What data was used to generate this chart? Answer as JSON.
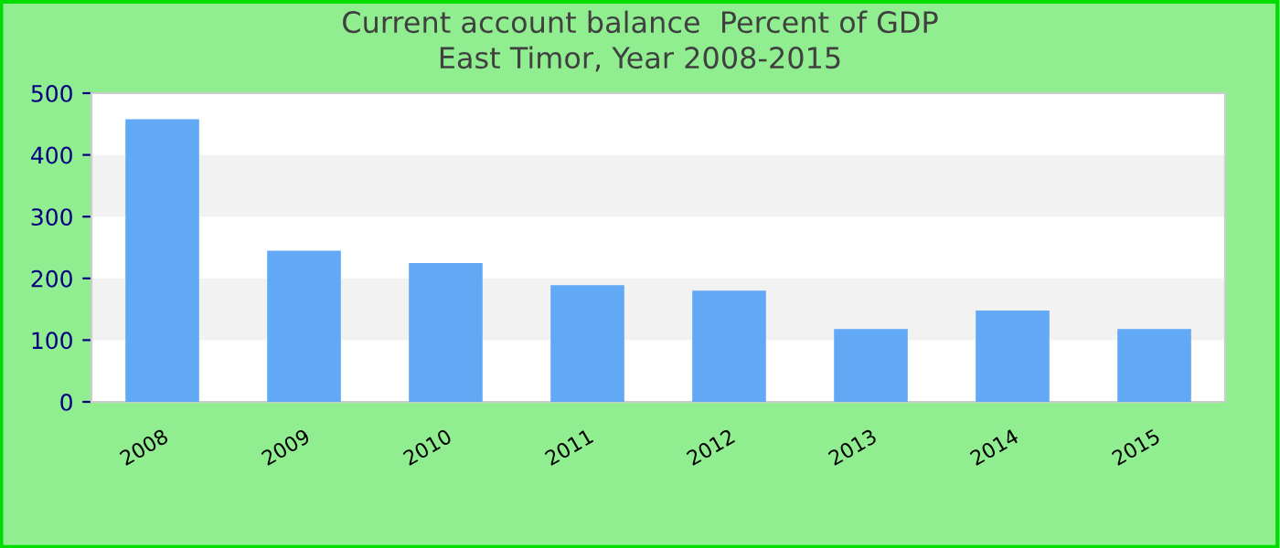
{
  "chart_data": {
    "type": "bar",
    "title": "Current account balance  Percent of GDP",
    "subtitle": "East Timor, Year 2008-2015",
    "categories": [
      "2008",
      "2009",
      "2010",
      "2011",
      "2012",
      "2013",
      "2014",
      "2015"
    ],
    "values": [
      458,
      245,
      225,
      189,
      180,
      118,
      148,
      118
    ],
    "color": "#61a8f5",
    "ylim": [
      0,
      500
    ],
    "yticks": [
      0,
      100,
      200,
      300,
      400,
      500
    ],
    "grid": false,
    "legend": false,
    "bands": [
      {
        "axis": "y",
        "from": 100,
        "to": 200,
        "label": null,
        "color": "#f2f2f2"
      },
      {
        "axis": "y",
        "from": 300,
        "to": 400,
        "label": null,
        "color": "#f2f2f2"
      }
    ]
  }
}
